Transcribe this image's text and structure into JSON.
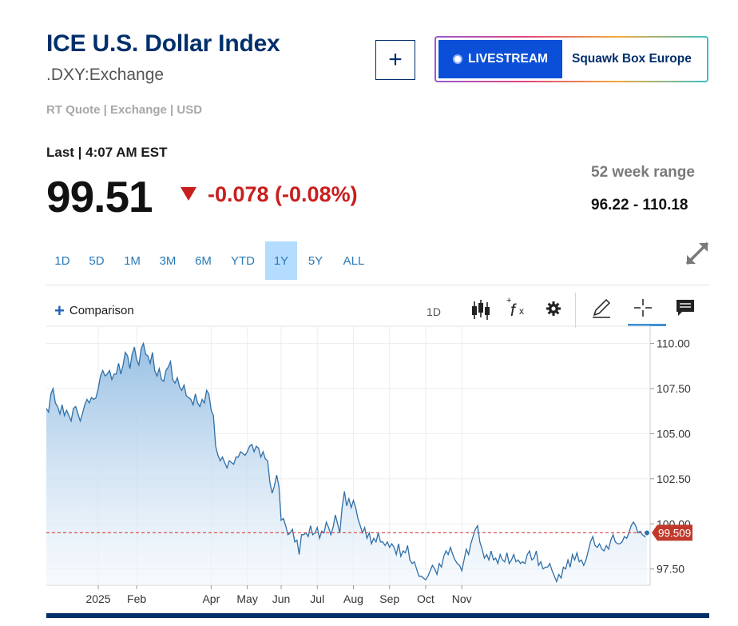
{
  "header": {
    "title": "ICE U.S. Dollar Index",
    "symbol": ".DXY:Exchange",
    "quote_meta": "RT Quote | Exchange | USD",
    "add_label": "+"
  },
  "livestream": {
    "button_label": "LIVESTREAM",
    "show_name": "Squawk Box Europe"
  },
  "quote": {
    "last_label": "Last | 4:07 AM EST",
    "price": "99.51",
    "change": "-0.078 (-0.08%)",
    "range_label": "52 week range",
    "range_value": "96.22 - 110.18",
    "change_color": "#c81e1e"
  },
  "tabs": [
    {
      "label": "1D",
      "active": false
    },
    {
      "label": "5D",
      "active": false
    },
    {
      "label": "1M",
      "active": false
    },
    {
      "label": "3M",
      "active": false
    },
    {
      "label": "6M",
      "active": false
    },
    {
      "label": "YTD",
      "active": false
    },
    {
      "label": "1Y",
      "active": true
    },
    {
      "label": "5Y",
      "active": false
    },
    {
      "label": "ALL",
      "active": false
    }
  ],
  "toolbar": {
    "comparison_label": "Comparison",
    "interval_label": "1D",
    "icons": [
      "candlestick-icon",
      "function-icon",
      "gear-icon",
      "pencil-icon",
      "crosshair-icon",
      "comment-icon"
    ]
  },
  "chart_data": {
    "type": "area",
    "title": "",
    "xlabel": "",
    "ylabel": "",
    "ylim": [
      96.6,
      110.6
    ],
    "yticks": [
      "110.00",
      "107.50",
      "105.00",
      "102.50",
      "100.00",
      "97.50"
    ],
    "xticks": [
      "2025",
      "Feb",
      "Apr",
      "May",
      "Jun",
      "Jul",
      "Aug",
      "Sep",
      "Oct",
      "Nov"
    ],
    "last_value_label": "99.509",
    "last_value": 99.509,
    "grid": true,
    "colors": {
      "line": "#2f6fa7",
      "fill_top": "#9fc4e6",
      "marker": "#c0392b"
    },
    "series": [
      {
        "values": [
          106.4,
          106.2,
          107.2,
          107.5,
          106.7,
          106.5,
          106.1,
          106.6,
          106.0,
          106.3,
          106.0,
          105.7,
          106.4,
          106.5,
          106.1,
          105.7,
          106.1,
          106.6,
          106.9,
          106.7,
          107.0,
          106.9,
          107.0,
          107.5,
          108.2,
          108.5,
          108.2,
          108.3,
          108.5,
          108.0,
          108.3,
          108.3,
          108.9,
          108.3,
          108.8,
          109.5,
          109.3,
          108.6,
          109.4,
          109.8,
          109.1,
          108.8,
          109.7,
          110.0,
          109.4,
          109.3,
          108.9,
          109.5,
          108.5,
          108.2,
          108.6,
          108.0,
          107.9,
          108.5,
          108.7,
          109.0,
          108.0,
          107.8,
          108.1,
          107.6,
          107.4,
          107.7,
          107.1,
          107.0,
          106.9,
          106.6,
          107.2,
          106.7,
          106.5,
          106.9,
          106.7,
          107.4,
          107.2,
          106.3,
          106.0,
          104.3,
          103.8,
          103.5,
          103.7,
          103.4,
          103.1,
          103.5,
          103.4,
          103.3,
          103.7,
          103.7,
          104.0,
          103.9,
          103.8,
          104.0,
          104.3,
          104.4,
          104.0,
          104.3,
          104.2,
          103.7,
          104.0,
          103.6,
          103.5,
          102.3,
          101.7,
          102.1,
          102.7,
          102.1,
          100.2,
          100.3,
          99.9,
          99.4,
          99.5,
          99.7,
          99.0,
          99.1,
          98.3,
          99.4,
          99.4,
          99.5,
          99.3,
          99.9,
          99.4,
          99.5,
          99.8,
          99.2,
          99.6,
          99.5,
          100.1,
          99.8,
          99.4,
          99.8,
          100.5,
          100.0,
          99.5,
          100.9,
          101.8,
          101.0,
          101.4,
          100.9,
          101.3,
          100.9,
          100.3,
          99.9,
          99.5,
          99.8,
          99.2,
          99.5,
          98.9,
          99.2,
          99.0,
          99.5,
          99.0,
          99.0,
          98.8,
          99.0,
          98.7,
          98.9,
          98.7,
          98.3,
          98.9,
          98.2,
          98.5,
          98.4,
          98.8,
          98.0,
          97.8,
          97.9,
          97.5,
          97.1,
          97.1,
          97.0,
          96.9,
          97.1,
          97.4,
          97.7,
          97.5,
          97.2,
          97.8,
          97.6,
          98.2,
          98.5,
          98.3,
          98.7,
          98.3,
          98.0,
          97.8,
          97.7,
          97.4,
          98.0,
          98.6,
          98.3,
          98.9,
          99.3,
          99.7,
          99.9,
          99.0,
          98.6,
          98.1,
          98.3,
          98.0,
          98.5,
          98.0,
          98.1,
          97.8,
          98.3,
          98.0,
          97.9,
          98.4,
          97.8,
          98.0,
          98.3,
          97.9,
          98.0,
          97.8,
          97.9,
          97.8,
          98.3,
          98.5,
          98.0,
          98.1,
          98.5,
          97.7,
          97.9,
          97.5,
          97.6,
          97.6,
          97.8,
          97.4,
          97.1,
          96.8,
          97.2,
          97.0,
          97.6,
          97.5,
          98.0,
          97.6,
          98.3,
          98.0,
          98.4,
          97.9,
          98.0,
          97.7,
          98.0,
          98.5,
          99.0,
          99.3,
          98.8,
          98.7,
          98.9,
          98.6,
          98.5,
          98.8,
          98.6,
          99.1,
          99.4,
          99.0,
          98.9,
          98.9,
          99.0,
          99.3,
          99.2,
          99.5,
          99.9,
          100.1,
          99.9,
          99.5,
          99.6,
          99.4,
          99.3,
          99.5
        ]
      }
    ]
  }
}
